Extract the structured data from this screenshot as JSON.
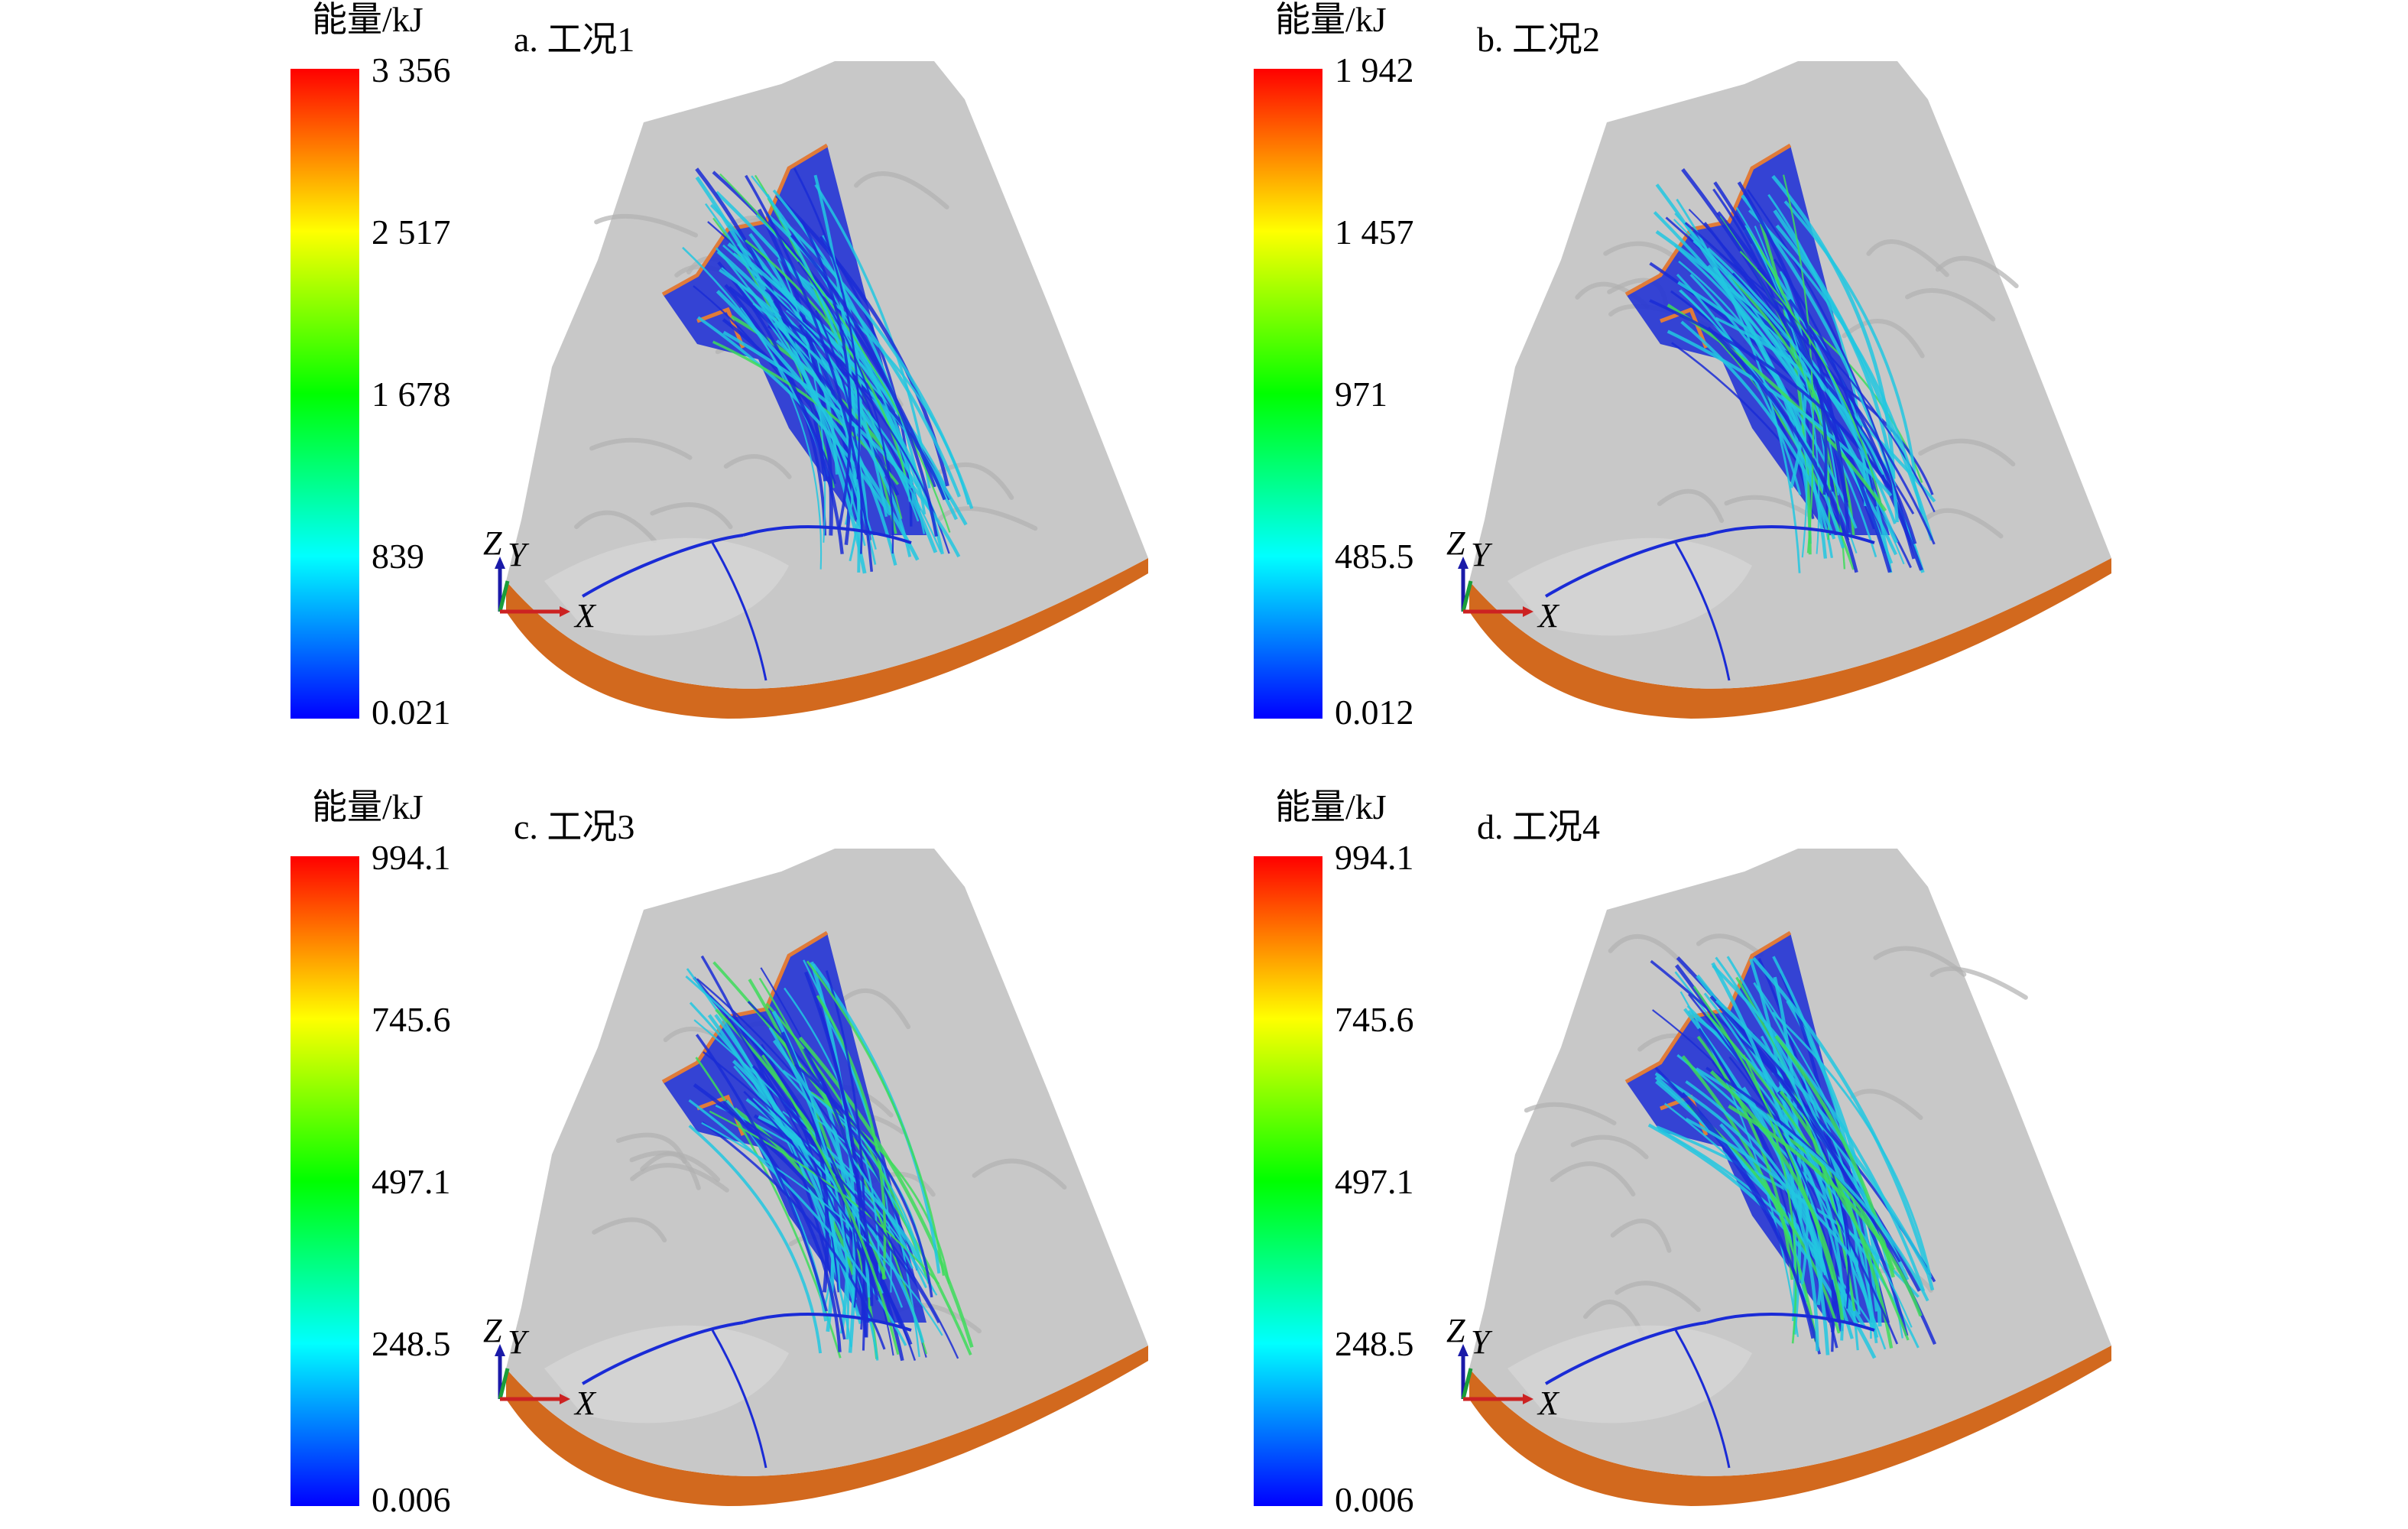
{
  "panels": [
    {
      "label": "a. 工况1",
      "colorbar": {
        "title": "能量/kJ",
        "ticks": [
          "3 356",
          "2 517",
          "1 678",
          "839",
          "0.021"
        ]
      },
      "axes": {
        "z": "Z",
        "y": "Y",
        "x": "X"
      }
    },
    {
      "label": "b. 工况2",
      "colorbar": {
        "title": "能量/kJ",
        "ticks": [
          "1 942",
          "1 457",
          "971",
          "485.5",
          "0.012"
        ]
      },
      "axes": {
        "z": "Z",
        "y": "Y",
        "x": "X"
      }
    },
    {
      "label": "c. 工况3",
      "colorbar": {
        "title": "能量/kJ",
        "ticks": [
          "994.1",
          "745.6",
          "497.1",
          "248.5",
          "0.006"
        ]
      },
      "axes": {
        "z": "Z",
        "y": "Y",
        "x": "X"
      }
    },
    {
      "label": "d. 工况4",
      "colorbar": {
        "title": "能量/kJ",
        "ticks": [
          "994.1",
          "745.6",
          "497.1",
          "248.5",
          "0.006"
        ]
      },
      "axes": {
        "z": "Z",
        "y": "Y",
        "x": "X"
      }
    }
  ],
  "colors": {
    "colorbar_stops": [
      "#ff0000",
      "#ffff00",
      "#00ff00",
      "#00ffff",
      "#0000ff"
    ],
    "terrain": "#c8c8c8",
    "base": "#d2691e",
    "source_outline": "#e07b39",
    "trajectory_low": "#1a2bd6",
    "trajectory_mid": "#22c7e0",
    "trajectory_high": "#3ddc5a",
    "axis_z": "#1a1aa8",
    "axis_y": "#1a9e3a",
    "axis_x": "#cc2222"
  }
}
